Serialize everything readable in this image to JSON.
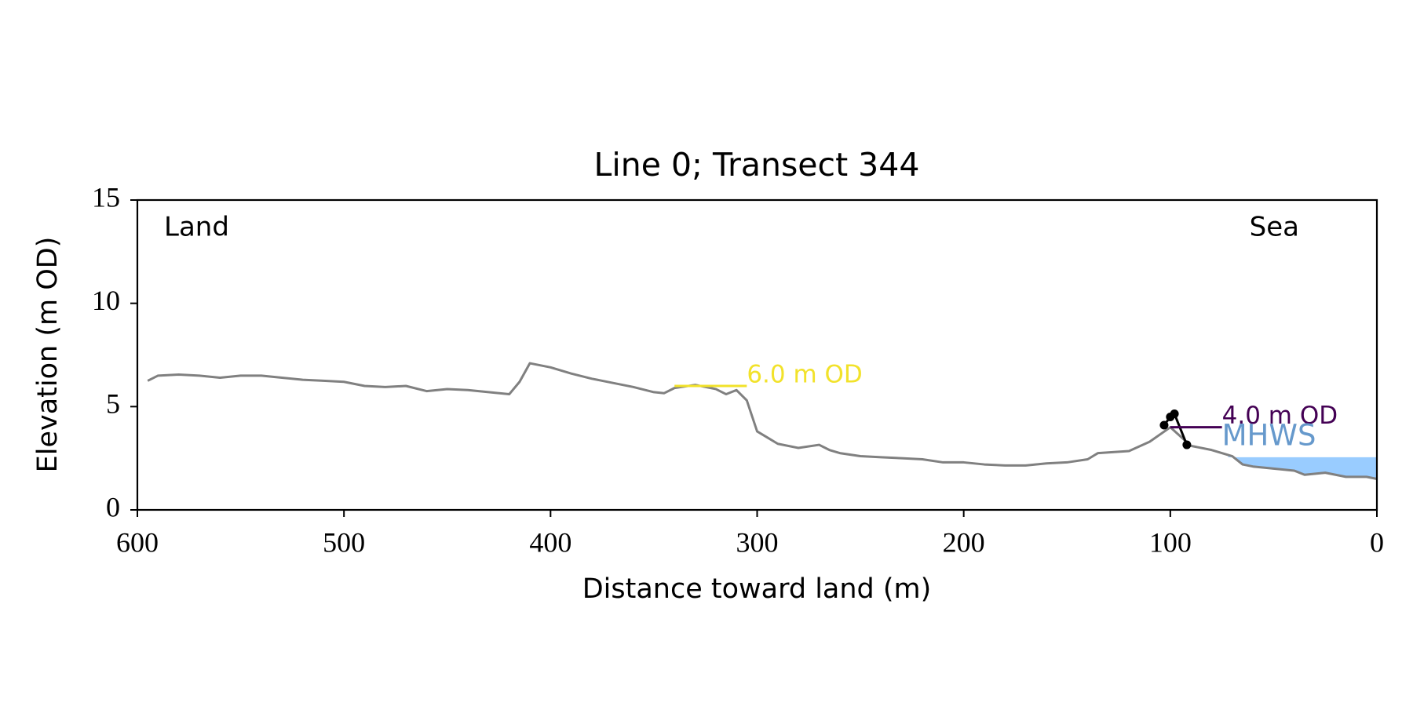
{
  "chart_data": {
    "type": "line",
    "title": "Line 0; Transect 344",
    "xlabel": "Distance toward land (m)",
    "ylabel": "Elevation (m OD)",
    "annotations": {
      "land": "Land",
      "sea": "Sea"
    },
    "xlim": [
      600,
      0
    ],
    "ylim": [
      0,
      15
    ],
    "xticks": [
      600,
      500,
      400,
      300,
      200,
      100,
      0
    ],
    "yticks": [
      0,
      5,
      10,
      15
    ],
    "series": [
      {
        "color": "#808080",
        "markers": false,
        "x": [
          595,
          590,
          580,
          570,
          560,
          550,
          540,
          530,
          520,
          510,
          500,
          490,
          480,
          470,
          460,
          450,
          440,
          430,
          420,
          415,
          410,
          400,
          390,
          380,
          370,
          360,
          350,
          345,
          340,
          330,
          320,
          315,
          310,
          305,
          300,
          295,
          290,
          280,
          270,
          265,
          260,
          250,
          240,
          230,
          220,
          210,
          200,
          190,
          180,
          170,
          160,
          150,
          140,
          135,
          120,
          110,
          100,
          90,
          80,
          70,
          65,
          60,
          50,
          40,
          35,
          25,
          15,
          5,
          0
        ],
        "values": [
          6.25,
          6.5,
          6.55,
          6.5,
          6.4,
          6.5,
          6.5,
          6.4,
          6.3,
          6.25,
          6.2,
          6.0,
          5.95,
          6.0,
          5.75,
          5.85,
          5.8,
          5.7,
          5.6,
          6.2,
          7.1,
          6.9,
          6.6,
          6.35,
          6.15,
          5.95,
          5.7,
          5.65,
          5.9,
          6.05,
          5.85,
          5.6,
          5.8,
          5.3,
          3.8,
          3.5,
          3.2,
          3.0,
          3.15,
          2.9,
          2.75,
          2.6,
          2.55,
          2.5,
          2.45,
          2.3,
          2.3,
          2.2,
          2.15,
          2.15,
          2.25,
          2.3,
          2.45,
          2.75,
          2.85,
          3.3,
          4.0,
          3.1,
          2.9,
          2.6,
          2.2,
          2.1,
          2.0,
          1.9,
          1.7,
          1.8,
          1.6,
          1.6,
          1.5
        ]
      },
      {
        "color": "#000000",
        "markers": true,
        "x": [
          103,
          100,
          98,
          92
        ],
        "values": [
          4.1,
          4.5,
          4.65,
          3.15
        ]
      }
    ],
    "reference_lines": [
      {
        "label": "6.0 m OD",
        "value": 6.0,
        "x": [
          340,
          305
        ],
        "color": "#f2e22a"
      },
      {
        "label": "4.0 m OD",
        "value": 4.0,
        "x": [
          100,
          75
        ],
        "color": "#440154"
      }
    ],
    "mhws": {
      "label": "MHWS",
      "value": 2.55,
      "x": [
        72,
        0
      ],
      "color": "#99ccff",
      "text_color": "#6699cc"
    }
  }
}
